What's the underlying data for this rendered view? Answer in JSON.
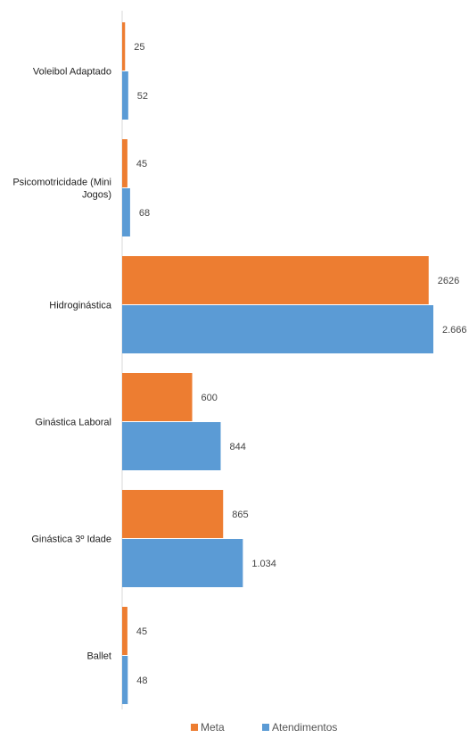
{
  "chart_data": {
    "type": "bar",
    "orientation": "horizontal",
    "categories": [
      "Voleibol Adaptado",
      "Psicomotricidade (Mini Jogos)",
      "Hidroginástica",
      "Ginástica Laboral",
      "Ginástica 3º Idade",
      "Ballet"
    ],
    "category_lines": [
      [
        "Voleibol Adaptado"
      ],
      [
        "Psicomotricidade (Mini",
        "Jogos)"
      ],
      [
        "Hidroginástica"
      ],
      [
        "Ginástica Laboral"
      ],
      [
        "Ginástica 3º Idade"
      ],
      [
        "Ballet"
      ]
    ],
    "series": [
      {
        "name": "Meta",
        "color": "#ED7D31",
        "values": [
          25,
          45,
          2626,
          600,
          865,
          45
        ],
        "labels": [
          "25",
          "45",
          "2626",
          "600",
          "865",
          "45"
        ]
      },
      {
        "name": "Atendimentos",
        "color": "#5B9BD5",
        "values": [
          52,
          68,
          2666,
          844,
          1034,
          48
        ],
        "labels": [
          "52",
          "68",
          "2.666",
          "844",
          "1.034",
          "48"
        ]
      }
    ],
    "xlim": [
      0,
      2666
    ],
    "grid": false,
    "legend_position": "bottom"
  }
}
